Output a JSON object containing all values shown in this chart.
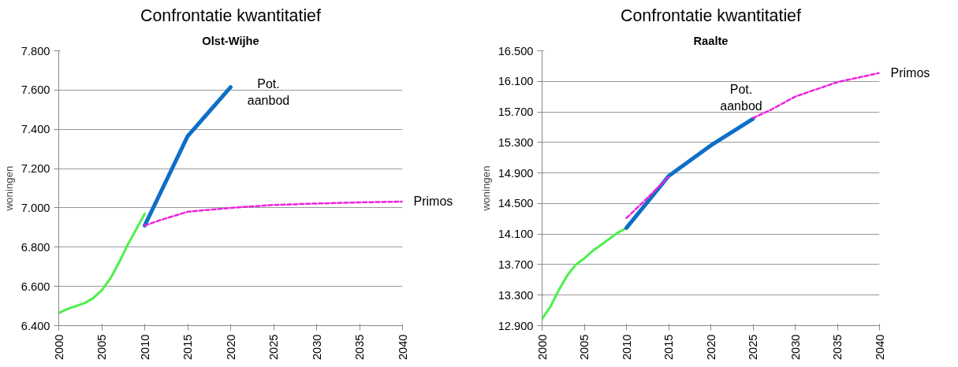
{
  "chart_data": [
    {
      "type": "line",
      "title": "Confrontatie kwantitatief",
      "subtitle": "Olst-Wijhe",
      "ylabel": "woningen",
      "xlim": [
        2000,
        2040
      ],
      "xticks": [
        2000,
        2005,
        2010,
        2015,
        2020,
        2025,
        2030,
        2035,
        2040
      ],
      "ylim": [
        6400,
        7800
      ],
      "yticks": [
        {
          "value": 6400,
          "label": "6.400"
        },
        {
          "value": 6600,
          "label": "6.600"
        },
        {
          "value": 6800,
          "label": "6.800"
        },
        {
          "value": 7000,
          "label": "7.000"
        },
        {
          "value": 7200,
          "label": "7.200"
        },
        {
          "value": 7400,
          "label": "7.400"
        },
        {
          "value": 7600,
          "label": "7.600"
        },
        {
          "value": 7800,
          "label": "7.800"
        }
      ],
      "grid": "y",
      "series": [
        {
          "color": "#4cf04c",
          "line_style": "solid",
          "x": [
            2000,
            2001,
            2002,
            2003,
            2004,
            2005,
            2006,
            2007,
            2008,
            2009,
            2010
          ],
          "values": [
            6465,
            6485,
            6500,
            6515,
            6540,
            6580,
            6640,
            6720,
            6810,
            6890,
            6970
          ]
        },
        {
          "name": "Primos",
          "color": "#ee22dd",
          "line_style": "dashed",
          "x": [
            2010,
            2012,
            2015,
            2020,
            2025,
            2030,
            2035,
            2040
          ],
          "values": [
            6910,
            6940,
            6980,
            7000,
            7015,
            7022,
            7028,
            7032
          ]
        },
        {
          "name": "Pot. aanbod",
          "color": "#0f6fc6",
          "line_style": "solid",
          "x": [
            2010,
            2015,
            2020
          ],
          "values": [
            6910,
            7365,
            7615
          ]
        }
      ]
    },
    {
      "type": "line",
      "title": "Confrontatie kwantitatief",
      "subtitle": "Raalte",
      "ylabel": "woningen",
      "xlim": [
        2000,
        2040
      ],
      "xticks": [
        2000,
        2005,
        2010,
        2015,
        2020,
        2025,
        2030,
        2035,
        2040
      ],
      "ylim": [
        12900,
        16500
      ],
      "yticks": [
        {
          "value": 12900,
          "label": "12.900"
        },
        {
          "value": 13300,
          "label": "13.300"
        },
        {
          "value": 13700,
          "label": "13.700"
        },
        {
          "value": 14100,
          "label": "14.100"
        },
        {
          "value": 14500,
          "label": "14.500"
        },
        {
          "value": 14900,
          "label": "14.900"
        },
        {
          "value": 15300,
          "label": "15.300"
        },
        {
          "value": 15700,
          "label": "15.700"
        },
        {
          "value": 16100,
          "label": "16.100"
        },
        {
          "value": 16500,
          "label": "16.500"
        }
      ],
      "grid": "y",
      "series": [
        {
          "color": "#4cf04c",
          "line_style": "solid",
          "x": [
            2000,
            2001,
            2002,
            2003,
            2004,
            2005,
            2006,
            2007,
            2008,
            2009,
            2010
          ],
          "values": [
            12990,
            13150,
            13370,
            13560,
            13700,
            13780,
            13880,
            13960,
            14040,
            14120,
            14180
          ]
        },
        {
          "name": "Primos",
          "color": "#ee22dd",
          "line_style": "dashed",
          "x": [
            2010,
            2012,
            2015,
            2020,
            2025,
            2027,
            2030,
            2035,
            2040
          ],
          "values": [
            14310,
            14520,
            14850,
            null,
            15620,
            15720,
            15900,
            16090,
            16210
          ]
        },
        {
          "name": "Pot. aanbod",
          "color": "#0f6fc6",
          "line_style": "solid",
          "x": [
            2010,
            2015,
            2020,
            2025
          ],
          "values": [
            14180,
            14860,
            15260,
            15610
          ]
        }
      ]
    }
  ]
}
